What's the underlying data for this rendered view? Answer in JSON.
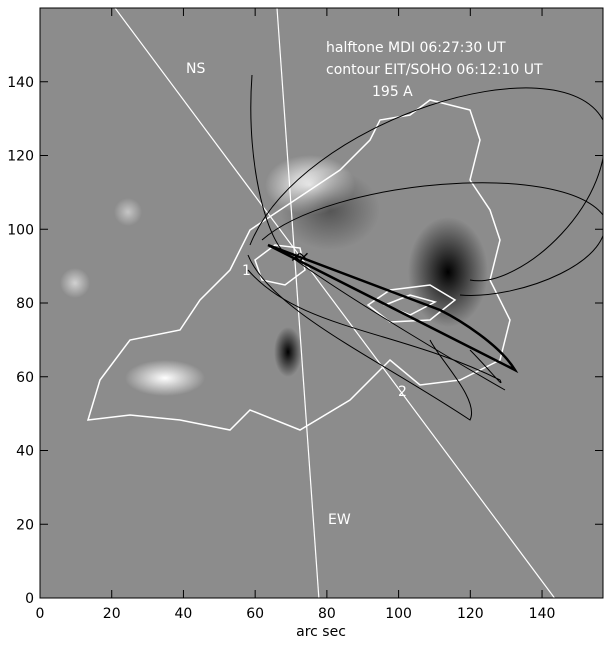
{
  "chart_data": {
    "type": "image",
    "xlabel": "arc sec",
    "xlim": [
      0,
      157
    ],
    "ylim": [
      0,
      160
    ],
    "xticks": [
      0,
      20,
      40,
      60,
      80,
      100,
      120,
      140
    ],
    "yticks": [
      0,
      20,
      40,
      60,
      80,
      100,
      120,
      140
    ],
    "annotations": [
      "halftone MDI  06:27:30 UT",
      "contour EIT/SOHO  06:12:10 UT",
      "195 A",
      "NS",
      "EW",
      "1",
      "2"
    ]
  }
}
